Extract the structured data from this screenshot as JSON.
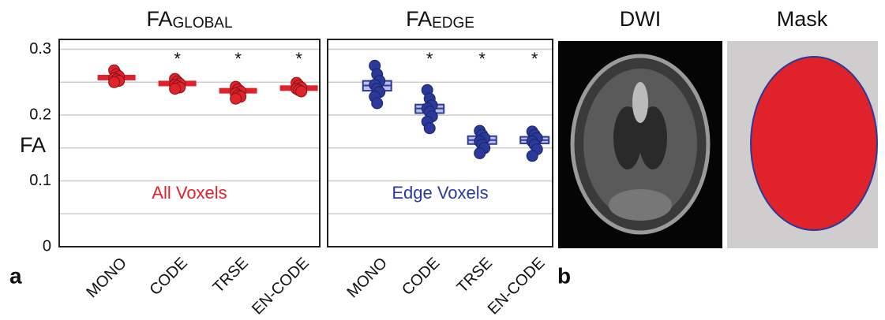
{
  "y_label": "FA",
  "panel_labels": [
    "a",
    "b"
  ],
  "images": [
    {
      "title": "DWI"
    },
    {
      "title": "Mask"
    }
  ],
  "chart_data": [
    {
      "type": "box",
      "title": "FA",
      "title_subscript": "GLOBAL",
      "annotation": "All Voxels",
      "color": "#e0222a",
      "box_fill": "#e0222a",
      "categories": [
        "MONO",
        "CODE",
        "TRSE",
        "EN-CODE"
      ],
      "significance": [
        null,
        "*",
        "*",
        "*"
      ],
      "medians": [
        0.257,
        0.248,
        0.237,
        0.241
      ],
      "q1": [
        0.254,
        0.245,
        0.234,
        0.238
      ],
      "q3": [
        0.26,
        0.251,
        0.24,
        0.244
      ],
      "points": [
        [
          0.268,
          0.262,
          0.259,
          0.256,
          0.254,
          0.252,
          0.25
        ],
        [
          0.255,
          0.251,
          0.248,
          0.246,
          0.244,
          0.242,
          0.24
        ],
        [
          0.243,
          0.239,
          0.236,
          0.233,
          0.23,
          0.228,
          0.225
        ],
        [
          0.249,
          0.245,
          0.242,
          0.24,
          0.238,
          0.236
        ]
      ],
      "ylim": [
        0,
        0.315
      ],
      "yticks": [
        0,
        0.1,
        0.2,
        0.3
      ],
      "minor_grid": [
        0.05,
        0.15,
        0.25
      ],
      "ytick_labels": true,
      "grid": true
    },
    {
      "type": "box",
      "title": "FA",
      "title_subscript": "EDGE",
      "annotation": "Edge Voxels",
      "color": "#2b3a9a",
      "box_fill": "#b9c2e6",
      "categories": [
        "MONO",
        "CODE",
        "TRSE",
        "EN-CODE"
      ],
      "significance": [
        null,
        "*",
        "*",
        "*"
      ],
      "medians": [
        0.245,
        0.21,
        0.162,
        0.162
      ],
      "q1": [
        0.237,
        0.203,
        0.156,
        0.157
      ],
      "q3": [
        0.252,
        0.216,
        0.168,
        0.167
      ],
      "points": [
        [
          0.275,
          0.262,
          0.252,
          0.246,
          0.24,
          0.235,
          0.228,
          0.218
        ],
        [
          0.238,
          0.225,
          0.215,
          0.21,
          0.205,
          0.198,
          0.19,
          0.18
        ],
        [
          0.176,
          0.17,
          0.165,
          0.16,
          0.155,
          0.15,
          0.142
        ],
        [
          0.175,
          0.17,
          0.165,
          0.16,
          0.155,
          0.148,
          0.138
        ]
      ],
      "ylim": [
        0,
        0.315
      ],
      "yticks": [
        0,
        0.1,
        0.2,
        0.3
      ],
      "minor_grid": [
        0.05,
        0.15,
        0.25
      ],
      "ytick_labels": false,
      "grid": true
    }
  ]
}
